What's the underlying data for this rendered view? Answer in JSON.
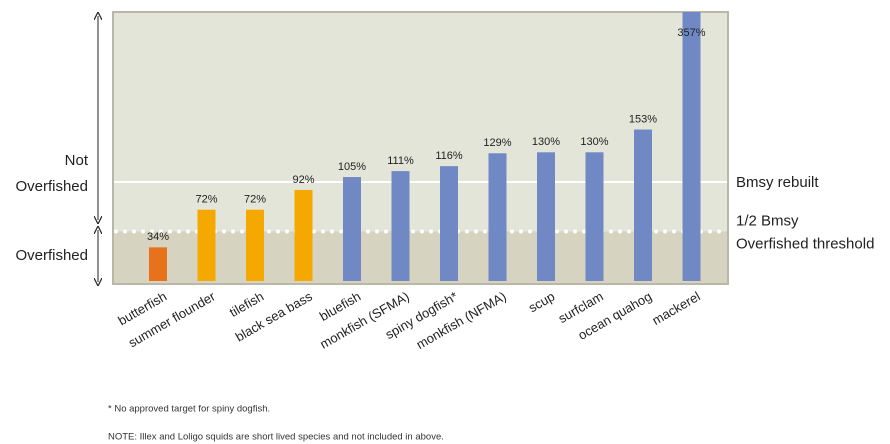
{
  "chart_data": {
    "type": "bar",
    "categories": [
      "butterfish",
      "summer flounder",
      "tilefish",
      "black sea bass",
      "bluefish",
      "monkfish (SFMA)",
      "spiny dogfish*",
      "monkfish (NFMA)",
      "scup",
      "surfclam",
      "ocean quahog",
      "mackerel"
    ],
    "values": [
      34,
      72,
      72,
      92,
      105,
      111,
      116,
      129,
      130,
      130,
      153,
      357
    ],
    "value_labels": [
      "34%",
      "72%",
      "72%",
      "92%",
      "105%",
      "111%",
      "116%",
      "129%",
      "130%",
      "130%",
      "153%",
      "357%"
    ],
    "colors": [
      "#e8711c",
      "#f5a800",
      "#f5a800",
      "#f5a800",
      "#7088c4",
      "#7088c4",
      "#7088c4",
      "#7088c4",
      "#7088c4",
      "#7088c4",
      "#7088c4",
      "#7088c4"
    ],
    "reference_lines": [
      {
        "label": "Bmsy rebuilt",
        "value": 100
      },
      {
        "label": "1/2 Bmsy",
        "sublabel": "Overfished threshold",
        "value": 50
      }
    ],
    "zones": [
      "Not Overfished",
      "Overfished"
    ],
    "notes": [
      "* No approved target for spiny dogfish.",
      "NOTE: Illex and Loligo squids are short lived species and not included in above."
    ]
  }
}
